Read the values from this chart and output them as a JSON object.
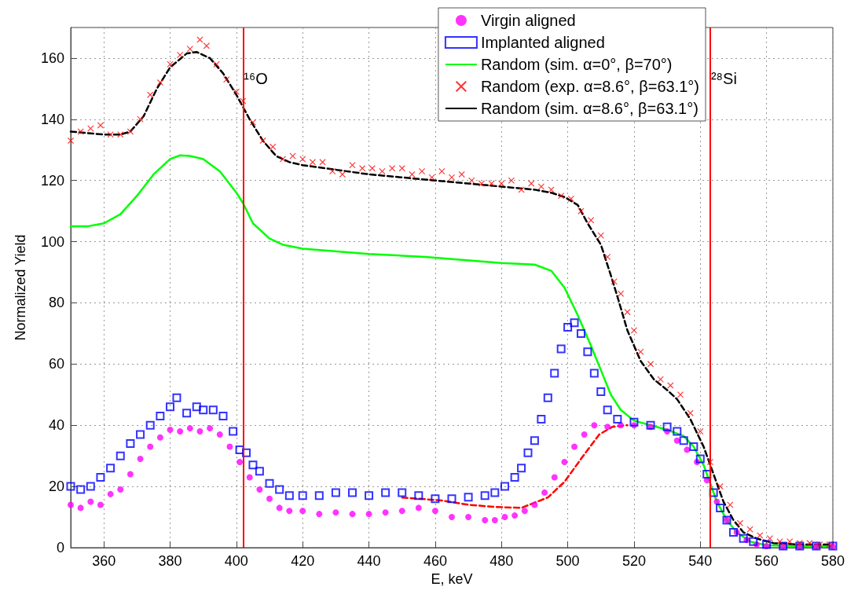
{
  "chart_data": {
    "type": "scatter",
    "xlabel": "E, keV",
    "ylabel": "Normalized Yield",
    "xlim": [
      350,
      580
    ],
    "xticks": [
      360,
      380,
      400,
      420,
      440,
      460,
      480,
      500,
      520,
      540,
      560,
      580
    ],
    "ylim": [
      0,
      170
    ],
    "yticks": [
      0,
      20,
      40,
      60,
      80,
      100,
      120,
      140,
      160
    ],
    "grid": true,
    "legend": "top right",
    "ref_lines": [
      {
        "axis": "x",
        "value": 402,
        "label": "¹⁶O",
        "color": "#ff0000"
      },
      {
        "axis": "x",
        "value": 543,
        "label": "²⁸Si",
        "color": "#ff0000"
      }
    ],
    "series": [
      {
        "name": "Virgin aligned",
        "marker": "circle",
        "color": "#ff00ff",
        "x": [
          350,
          353,
          356,
          359,
          362,
          365,
          368,
          371,
          374,
          377,
          380,
          383,
          386,
          389,
          392,
          395,
          398,
          401,
          404,
          407,
          410,
          413,
          416,
          420,
          425,
          430,
          435,
          440,
          445,
          450,
          455,
          460,
          465,
          470,
          475,
          478,
          481,
          484,
          487,
          490,
          493,
          496,
          499,
          502,
          505,
          508,
          512,
          516,
          520,
          525,
          530,
          533,
          536,
          539,
          542,
          545,
          548,
          551,
          554,
          557,
          560,
          565,
          570,
          575,
          580
        ],
        "values": [
          14,
          13,
          15,
          14,
          17.5,
          19,
          24,
          29,
          33,
          36,
          38.5,
          38,
          39,
          38,
          39,
          37,
          33,
          28,
          23,
          19,
          16,
          13,
          12,
          12,
          11,
          11.5,
          11,
          11,
          11.5,
          12,
          13,
          12,
          10,
          10,
          9,
          9,
          10,
          10.5,
          12,
          14,
          18,
          23,
          28,
          33,
          37,
          40,
          39.5,
          40,
          40,
          39.5,
          38,
          35,
          32,
          28,
          22,
          15,
          9,
          5,
          2.5,
          1,
          0.5,
          0.3,
          0.3,
          0.3,
          0.3
        ]
      },
      {
        "name": "Implanted aligned",
        "marker": "square",
        "color": "#0000ff",
        "x": [
          350,
          353,
          356,
          359,
          362,
          365,
          368,
          371,
          374,
          377,
          380,
          382,
          385,
          388,
          390,
          393,
          396,
          399,
          401,
          403,
          405,
          407,
          410,
          413,
          416,
          420,
          425,
          430,
          435,
          440,
          445,
          450,
          455,
          460,
          465,
          470,
          475,
          478,
          481,
          484,
          486,
          488,
          490,
          492,
          494,
          496,
          498,
          500,
          502,
          504,
          506,
          508,
          510,
          512,
          515,
          520,
          525,
          530,
          533,
          535,
          538,
          540,
          542,
          544,
          546,
          548,
          550,
          553,
          556,
          560,
          565,
          570,
          575,
          580
        ],
        "values": [
          20,
          19,
          20,
          23,
          26,
          30,
          34,
          37,
          40,
          43,
          46,
          49,
          44,
          46,
          45,
          45,
          43,
          38,
          32,
          31,
          27,
          25,
          21,
          19,
          17,
          17,
          17,
          18,
          18,
          17,
          18,
          18,
          17,
          16,
          16,
          16.5,
          17,
          18,
          20,
          23,
          26,
          31,
          35,
          42,
          49,
          57,
          65,
          72,
          73.5,
          70,
          64,
          57,
          51,
          45,
          42,
          41,
          40,
          39.5,
          38,
          35,
          33,
          29,
          24,
          18,
          13,
          9,
          5,
          3,
          2,
          1,
          0.5,
          0.5,
          0.5,
          0.5
        ]
      },
      {
        "name": "Random (sim. α=0°, β=70°)",
        "type": "line",
        "marker": "none",
        "line_style": "solid",
        "color": "#00ff00",
        "x": [
          350,
          355,
          360,
          365,
          370,
          375,
          380,
          383,
          386,
          390,
          395,
          400,
          402,
          405,
          410,
          414,
          420,
          440,
          457,
          480,
          490,
          495,
          499,
          503,
          507,
          510,
          513,
          516,
          520,
          525,
          530,
          535,
          538,
          541,
          543,
          545,
          548,
          551,
          555,
          560,
          570,
          580
        ],
        "values": [
          105,
          105,
          106,
          109,
          115,
          122,
          127,
          128.2,
          128,
          127,
          123,
          116,
          112.6,
          106,
          101,
          99,
          97.7,
          96,
          95,
          93,
          92.5,
          90.5,
          85,
          76,
          66,
          58,
          50,
          45,
          41.5,
          40,
          38.5,
          36.5,
          33,
          27,
          21,
          15,
          9,
          5,
          2,
          0.8,
          0.5,
          0.5
        ]
      },
      {
        "name": "Random (exp. α=8.6°, β=63.1°)",
        "marker": "cross",
        "color": "#ff0000",
        "x": [
          350,
          353,
          356,
          359,
          362,
          365,
          368,
          371,
          374,
          377,
          380,
          383,
          386,
          389,
          391,
          394,
          397,
          400,
          402,
          405,
          408,
          411,
          414,
          417,
          420,
          423,
          426,
          429,
          432,
          435,
          438,
          441,
          444,
          447,
          450,
          453,
          456,
          459,
          462,
          465,
          468,
          471,
          474,
          477,
          480,
          483,
          486,
          489,
          492,
          495,
          498,
          501,
          504,
          507,
          510,
          512,
          514,
          516,
          518,
          520,
          522,
          525,
          528,
          531,
          534,
          537,
          540,
          543,
          546,
          549,
          552,
          555,
          558,
          561,
          564,
          567,
          570,
          573,
          576,
          579
        ],
        "values": [
          133,
          136,
          137,
          138,
          135,
          135,
          136,
          140,
          148,
          152,
          158,
          161,
          163,
          166,
          164,
          158,
          153,
          149,
          146,
          139,
          133,
          131,
          127,
          128,
          127,
          126,
          126,
          123,
          122,
          125,
          124,
          124,
          123,
          124,
          124,
          122,
          123,
          121,
          123,
          121,
          122,
          120,
          119,
          119,
          119,
          120,
          117,
          119,
          118,
          117,
          115,
          114,
          110,
          107,
          102,
          95,
          87,
          83,
          77,
          71,
          64,
          60,
          55,
          53,
          50,
          44,
          38,
          28,
          20,
          14,
          8,
          6,
          4,
          3,
          2,
          2,
          1.5,
          1.5,
          1,
          1
        ]
      },
      {
        "name": "Random (sim. α=8.6°, β=63.1°)",
        "type": "line",
        "marker": "none",
        "line_style": "dashed",
        "color": "#000000",
        "x": [
          350,
          355,
          360,
          365,
          368,
          372,
          376,
          380,
          385,
          388,
          392,
          396,
          400,
          404,
          408,
          412,
          416,
          420,
          440,
          460,
          480,
          490,
          495,
          499,
          503,
          506,
          510,
          513,
          515,
          518,
          522,
          526,
          530,
          533,
          537,
          541,
          544,
          547,
          550,
          553,
          557,
          562,
          570,
          580
        ],
        "values": [
          136,
          135.5,
          135,
          135,
          136,
          141,
          150,
          157,
          161.5,
          162,
          160,
          155,
          148,
          140,
          133,
          128,
          126,
          125,
          122,
          120,
          118,
          117,
          116,
          114.6,
          112,
          106,
          99,
          89,
          82,
          71,
          61,
          55,
          51.5,
          48.5,
          42,
          33,
          24,
          15,
          9,
          5,
          3,
          1.5,
          1,
          1
        ]
      },
      {
        "type": "line",
        "marker": "none",
        "line_style": "dashed",
        "color": "#ff0000",
        "x": [
          450,
          462,
          470,
          478,
          486,
          494,
          499,
          504,
          509.5,
          513.5,
          518
        ],
        "values": [
          16.4,
          15.4,
          14,
          13.3,
          13,
          16.4,
          21.5,
          29,
          37,
          39.5,
          40
        ]
      }
    ]
  }
}
